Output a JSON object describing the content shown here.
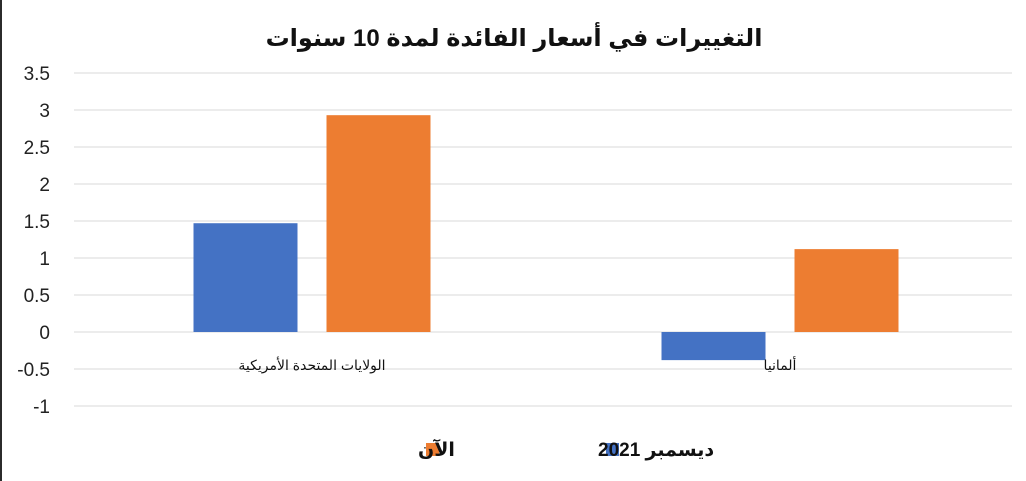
{
  "chart_data": {
    "type": "bar",
    "title": "التغييرات في أسعار الفائدة لمدة 10 سنوات",
    "xlabel": "",
    "ylabel": "",
    "categories": [
      "الولايات المتحدة الأمريكية",
      "ألمانيا"
    ],
    "series": [
      {
        "name": "ديسمبر 2021",
        "values": [
          1.47,
          -0.38
        ],
        "color": "#4472C4"
      },
      {
        "name": "الآن",
        "values": [
          2.93,
          1.12
        ],
        "color": "#ED7D31"
      }
    ],
    "ylim": [
      -1,
      3.5
    ],
    "yticks": [
      "3.5",
      "3",
      "2.5",
      "2",
      "1.5",
      "1",
      "0.5",
      "0",
      "-0.5",
      "-1"
    ],
    "grid": true,
    "legend_position": "bottom"
  }
}
